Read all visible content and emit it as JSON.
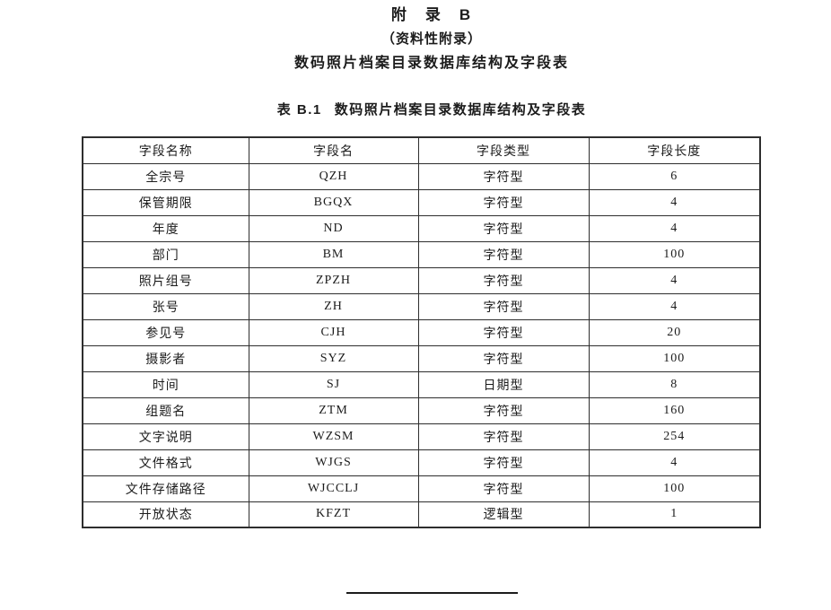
{
  "titles": {
    "appendix": "附　录　B",
    "type": "（资料性附录）",
    "subject": "数码照片档案目录数据库结构及字段表"
  },
  "caption": {
    "label": "表 B.1",
    "text": "数码照片档案目录数据库结构及字段表"
  },
  "table": {
    "headers": [
      "字段名称",
      "字段名",
      "字段类型",
      "字段长度"
    ],
    "rows": [
      [
        "全宗号",
        "QZH",
        "字符型",
        "6"
      ],
      [
        "保管期限",
        "BGQX",
        "字符型",
        "4"
      ],
      [
        "年度",
        "ND",
        "字符型",
        "4"
      ],
      [
        "部门",
        "BM",
        "字符型",
        "100"
      ],
      [
        "照片组号",
        "ZPZH",
        "字符型",
        "4"
      ],
      [
        "张号",
        "ZH",
        "字符型",
        "4"
      ],
      [
        "参见号",
        "CJH",
        "字符型",
        "20"
      ],
      [
        "摄影者",
        "SYZ",
        "字符型",
        "100"
      ],
      [
        "时间",
        "SJ",
        "日期型",
        "8"
      ],
      [
        "组题名",
        "ZTM",
        "字符型",
        "160"
      ],
      [
        "文字说明",
        "WZSM",
        "字符型",
        "254"
      ],
      [
        "文件格式",
        "WJGS",
        "字符型",
        "4"
      ],
      [
        "文件存储路径",
        "WJCCLJ",
        "字符型",
        "100"
      ],
      [
        "开放状态",
        "KFZT",
        "逻辑型",
        "1"
      ]
    ]
  },
  "colors": {
    "background": "#ffffff",
    "text": "#1c1c1c",
    "border": "#2e2e2e"
  }
}
